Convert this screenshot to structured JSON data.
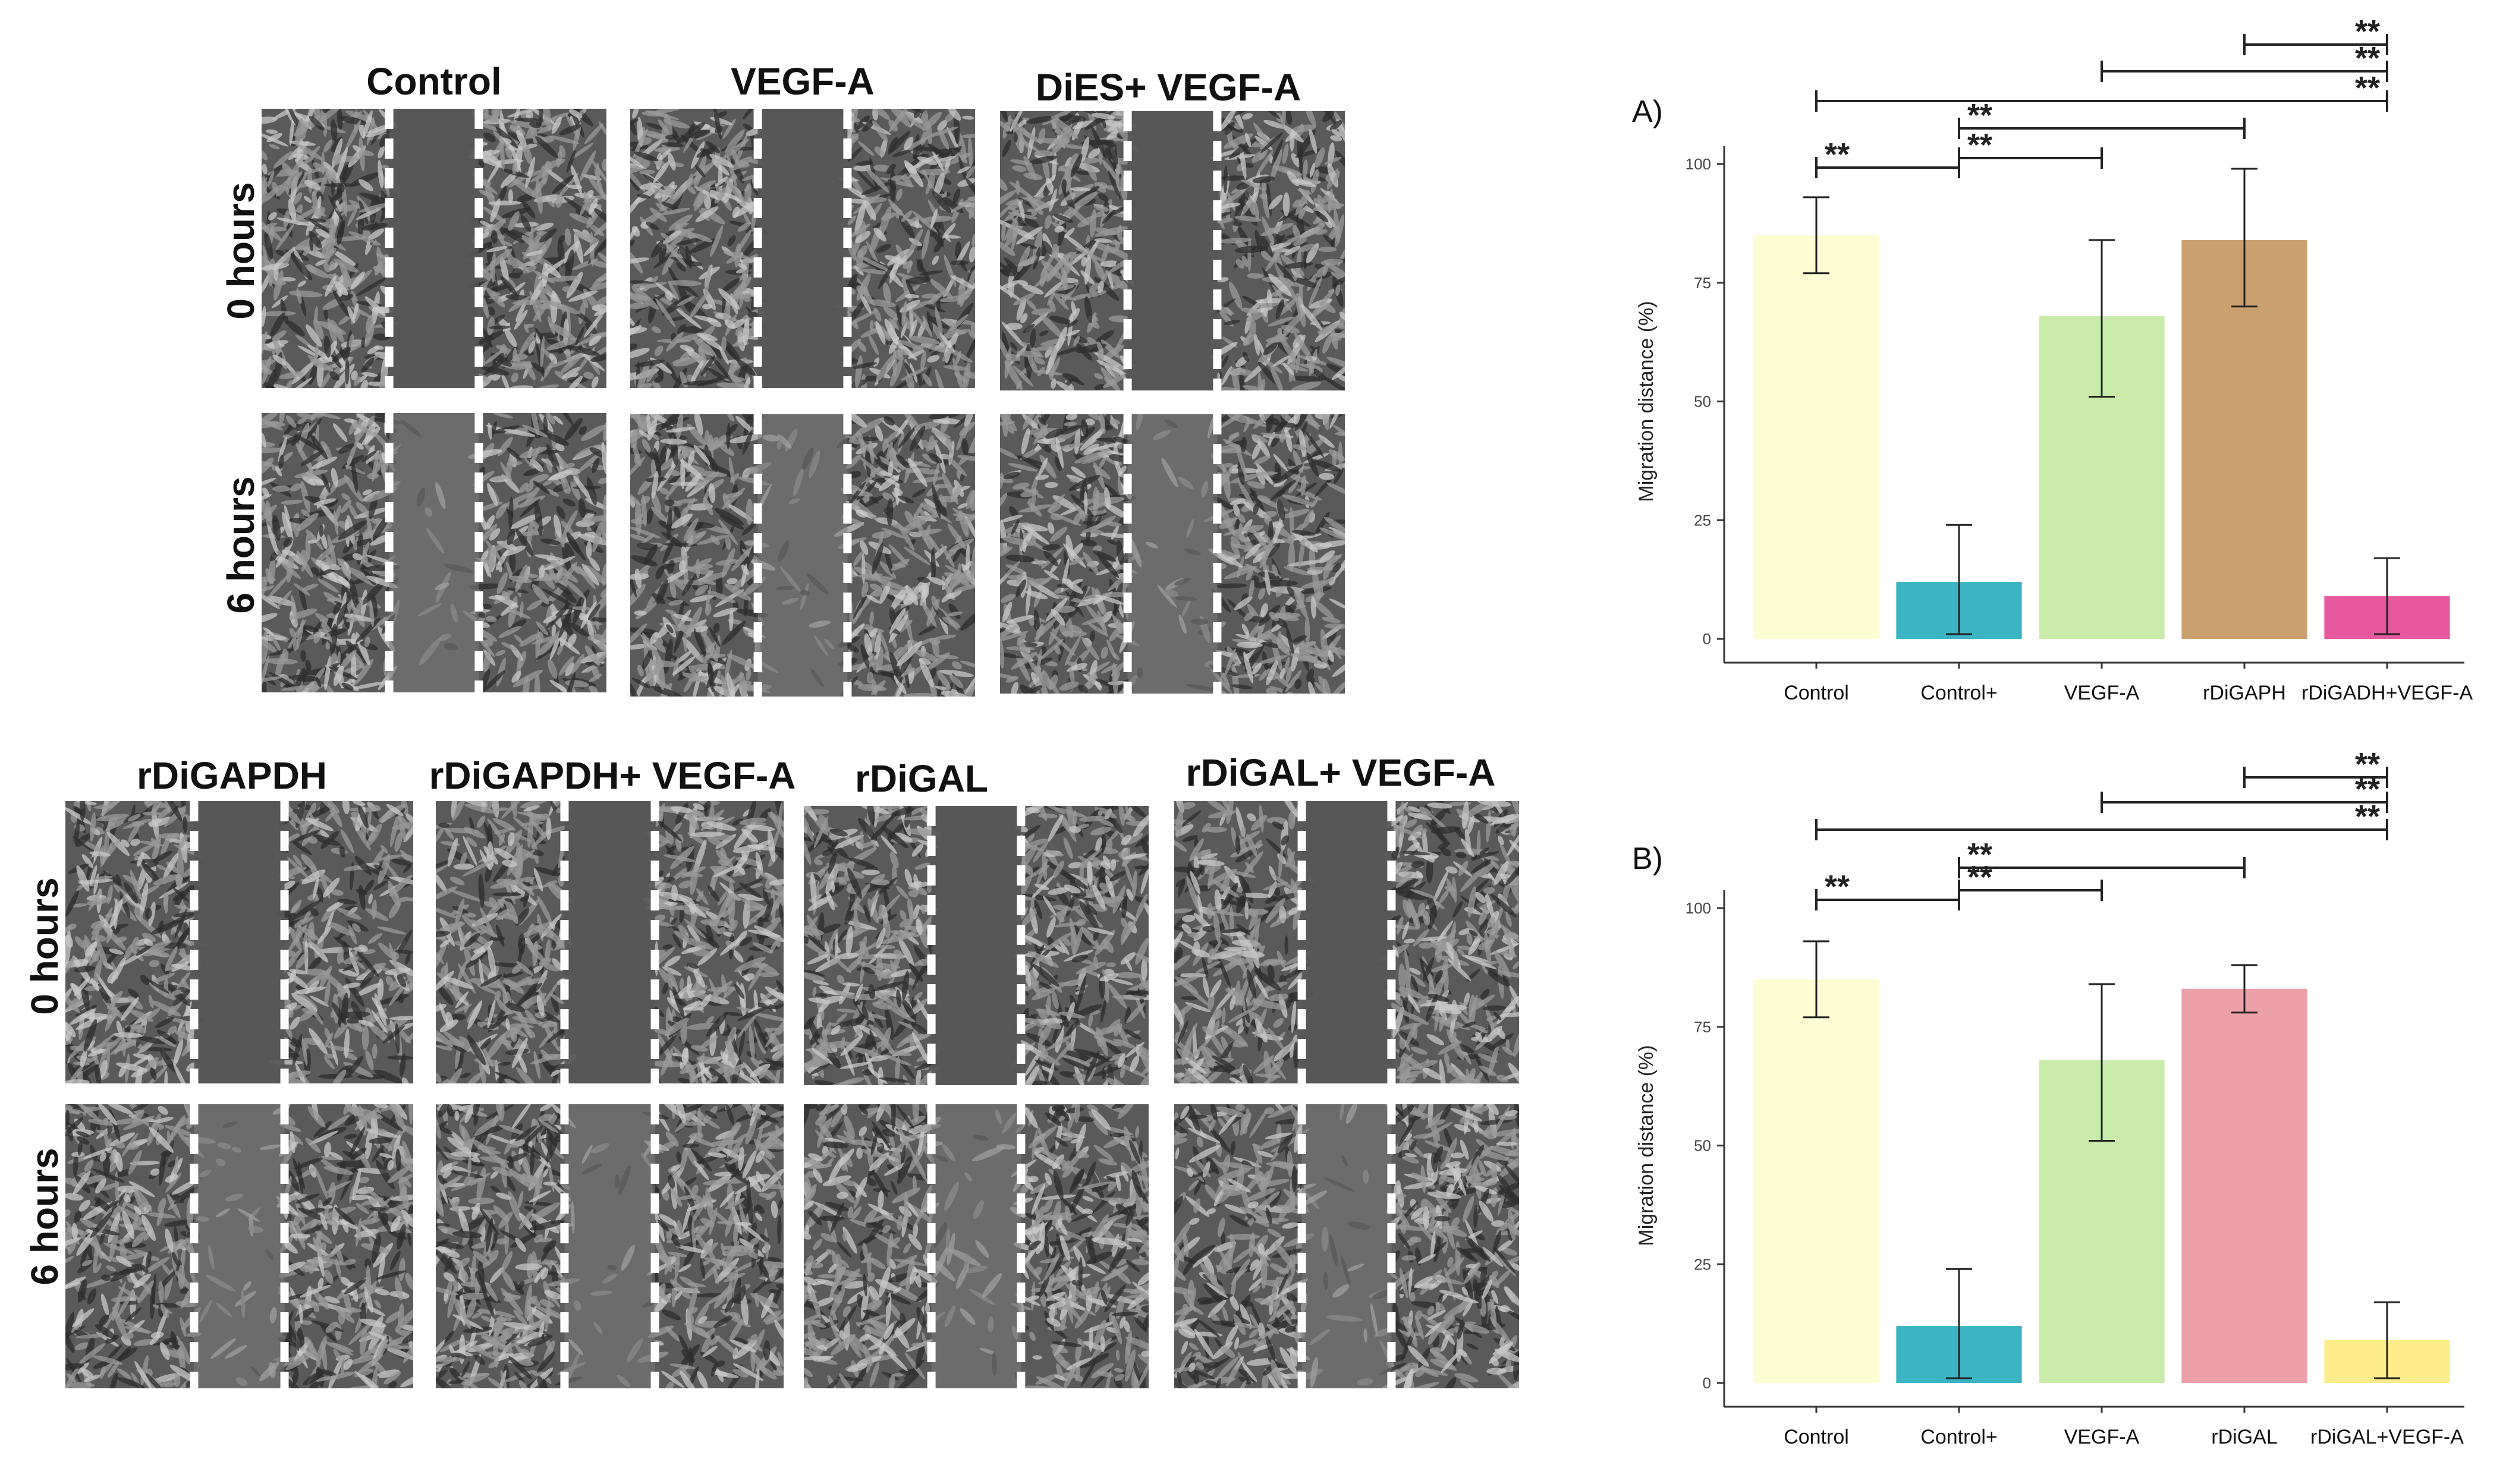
{
  "micrographs_top": {
    "titles": [
      "Control",
      "VEGF-A",
      "DiES+ VEGF-A"
    ],
    "row_labels": [
      "0 hours",
      "6 hours"
    ]
  },
  "micrographs_bottom": {
    "titles": [
      "rDiGAPDH",
      "rDiGAPDH+ VEGF-A",
      "rDiGAL",
      "rDiGAL+ VEGF-A"
    ],
    "row_labels": [
      "0 hours",
      "6 hours"
    ]
  },
  "colors": {
    "control": "#fcfdd3",
    "control_plus": "#3bb5c3",
    "vegf_a": "#c9ecaa",
    "rdigaph": "#c9a06e",
    "rdigadh_vegf_a": "#e8589f",
    "rdigal": "#eea0a8",
    "rdigal_vegf_a": "#fdec8a"
  },
  "chart_data": [
    {
      "type": "bar",
      "panel_label": "A)",
      "ylabel": "Migration distance (%)",
      "xlabel": "",
      "categories": [
        "Control",
        "Control+",
        "VEGF-A",
        "rDiGAPH",
        "rDiGADH+VEGF-A"
      ],
      "values": [
        85,
        12,
        68,
        84,
        9
      ],
      "error_low": [
        77,
        1,
        51,
        70,
        1
      ],
      "error_high": [
        93,
        24,
        84,
        99,
        17
      ],
      "colors": [
        "#fcfdd3",
        "#3bb5c3",
        "#c9ecaa",
        "#c9a06e",
        "#e8589f"
      ],
      "ylim": [
        0,
        100
      ],
      "yticks": [
        "0",
        "25",
        "50",
        "75",
        "100"
      ],
      "significance": [
        {
          "from": 0,
          "to": 1,
          "label": "**"
        },
        {
          "from": 1,
          "to": 2,
          "label": "**"
        },
        {
          "from": 1,
          "to": 3,
          "label": "**"
        },
        {
          "from": 0,
          "to": 4,
          "label": "**"
        },
        {
          "from": 2,
          "to": 4,
          "label": "**"
        },
        {
          "from": 3,
          "to": 4,
          "label": "**"
        }
      ]
    },
    {
      "type": "bar",
      "panel_label": "B)",
      "ylabel": "Migration distance (%)",
      "xlabel": "",
      "categories": [
        "Control",
        "Control+",
        "VEGF-A",
        "rDiGAL",
        "rDiGAL+VEGF-A"
      ],
      "values": [
        85,
        12,
        68,
        83,
        9
      ],
      "error_low": [
        77,
        1,
        51,
        78,
        1
      ],
      "error_high": [
        93,
        24,
        84,
        88,
        17
      ],
      "colors": [
        "#fcfdd3",
        "#3bb5c3",
        "#c9ecaa",
        "#eea0a8",
        "#fdec8a"
      ],
      "ylim": [
        0,
        100
      ],
      "yticks": [
        "0",
        "25",
        "50",
        "75",
        "100"
      ],
      "significance": [
        {
          "from": 0,
          "to": 1,
          "label": "**"
        },
        {
          "from": 1,
          "to": 2,
          "label": "**"
        },
        {
          "from": 1,
          "to": 3,
          "label": "**"
        },
        {
          "from": 0,
          "to": 4,
          "label": "**"
        },
        {
          "from": 2,
          "to": 4,
          "label": "**"
        },
        {
          "from": 3,
          "to": 4,
          "label": "**"
        }
      ]
    }
  ]
}
